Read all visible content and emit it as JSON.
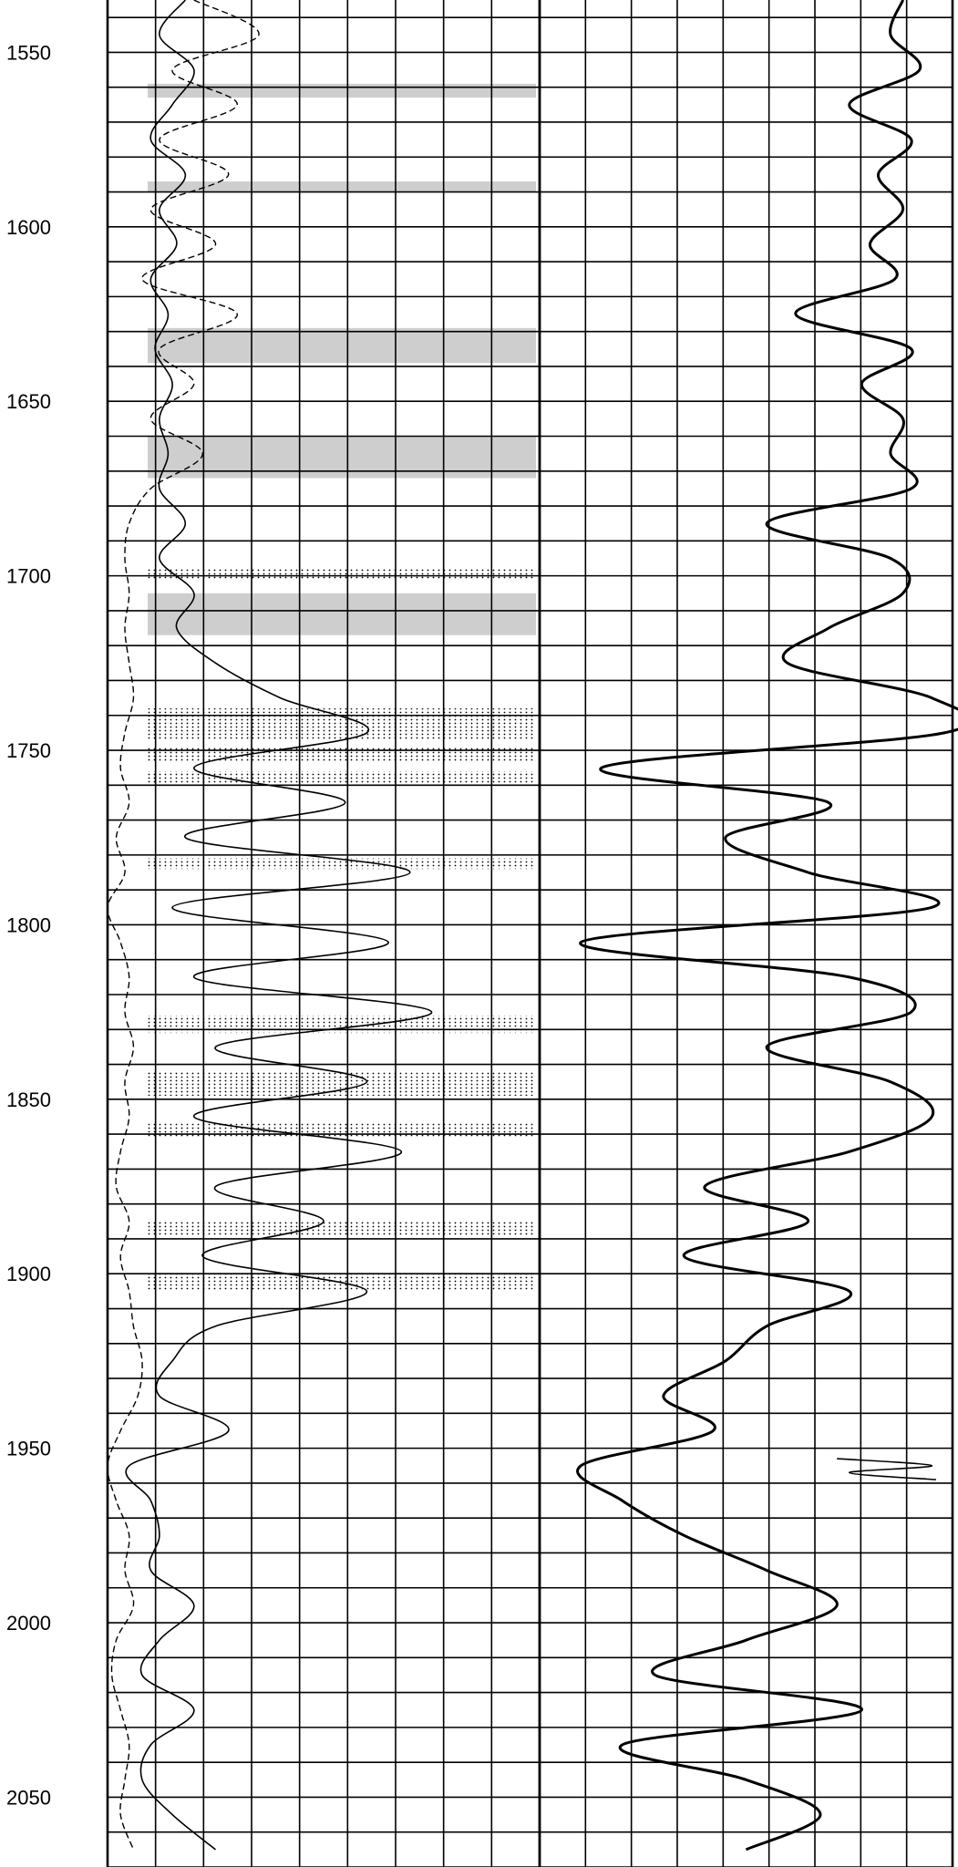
{
  "chart_data": {
    "type": "line",
    "title": "",
    "depth_axis": {
      "min": 1535,
      "max": 2070,
      "tick_labels": [
        "1550",
        "1600",
        "1650",
        "1700",
        "1750",
        "1800",
        "1850",
        "1900",
        "1950",
        "2000",
        "2050"
      ],
      "grid_interval": 10,
      "grid": true
    },
    "tracks": [
      {
        "name": "",
        "vertical_divisions": 9,
        "kind": "lithology_with_curves"
      },
      {
        "name": "",
        "vertical_divisions": 9,
        "kind": "curve"
      }
    ],
    "series": [
      {
        "track": 0,
        "style": "dashed",
        "scale": [
          0,
          1
        ],
        "depth": [
          1535,
          1545,
          1555,
          1565,
          1575,
          1585,
          1595,
          1605,
          1615,
          1625,
          1635,
          1645,
          1655,
          1665,
          1675,
          1685,
          1695,
          1705,
          1715,
          1725,
          1735,
          1745,
          1755,
          1765,
          1775,
          1785,
          1795,
          1805,
          1815,
          1825,
          1835,
          1845,
          1855,
          1865,
          1875,
          1885,
          1895,
          1905,
          1915,
          1925,
          1935,
          1945,
          1955,
          1965,
          1975,
          1985,
          1995,
          2005,
          2015,
          2025,
          2035,
          2045,
          2055,
          2065
        ],
        "value": [
          0.2,
          0.35,
          0.15,
          0.3,
          0.12,
          0.28,
          0.1,
          0.25,
          0.08,
          0.3,
          0.12,
          0.2,
          0.1,
          0.22,
          0.1,
          0.05,
          0.04,
          0.05,
          0.04,
          0.05,
          0.06,
          0.04,
          0.03,
          0.05,
          0.02,
          0.04,
          0.0,
          0.03,
          0.05,
          0.04,
          0.06,
          0.04,
          0.05,
          0.03,
          0.02,
          0.05,
          0.03,
          0.05,
          0.06,
          0.08,
          0.07,
          0.03,
          0.0,
          0.02,
          0.05,
          0.04,
          0.06,
          0.02,
          0.01,
          0.03,
          0.05,
          0.04,
          0.03,
          0.06
        ]
      },
      {
        "track": 0,
        "style": "solid",
        "scale": [
          0,
          1
        ],
        "depth": [
          1535,
          1545,
          1555,
          1565,
          1575,
          1585,
          1595,
          1605,
          1615,
          1625,
          1635,
          1645,
          1655,
          1665,
          1675,
          1685,
          1695,
          1705,
          1715,
          1725,
          1735,
          1745,
          1755,
          1765,
          1775,
          1785,
          1795,
          1805,
          1815,
          1825,
          1835,
          1845,
          1855,
          1865,
          1875,
          1885,
          1895,
          1905,
          1915,
          1925,
          1935,
          1945,
          1955,
          1965,
          1975,
          1985,
          1995,
          2005,
          2015,
          2025,
          2035,
          2045,
          2055,
          2065
        ],
        "value": [
          0.18,
          0.12,
          0.2,
          0.15,
          0.1,
          0.18,
          0.12,
          0.16,
          0.1,
          0.14,
          0.11,
          0.15,
          0.12,
          0.14,
          0.12,
          0.18,
          0.12,
          0.2,
          0.16,
          0.25,
          0.4,
          0.6,
          0.2,
          0.55,
          0.18,
          0.7,
          0.15,
          0.65,
          0.2,
          0.75,
          0.25,
          0.6,
          0.2,
          0.68,
          0.25,
          0.5,
          0.22,
          0.6,
          0.25,
          0.15,
          0.12,
          0.28,
          0.05,
          0.1,
          0.12,
          0.1,
          0.2,
          0.12,
          0.08,
          0.2,
          0.1,
          0.08,
          0.15,
          0.25
        ]
      },
      {
        "track": 1,
        "style": "thick",
        "scale": [
          0,
          1
        ],
        "depth": [
          1535,
          1545,
          1555,
          1565,
          1575,
          1585,
          1595,
          1605,
          1615,
          1625,
          1635,
          1645,
          1655,
          1665,
          1675,
          1685,
          1695,
          1705,
          1715,
          1725,
          1735,
          1745,
          1755,
          1765,
          1775,
          1785,
          1795,
          1805,
          1815,
          1825,
          1835,
          1845,
          1855,
          1865,
          1875,
          1885,
          1895,
          1905,
          1915,
          1925,
          1935,
          1945,
          1955,
          1965,
          1975,
          1985,
          1995,
          2005,
          2015,
          2025,
          2035,
          2045,
          2055,
          2065
        ],
        "value": [
          0.88,
          0.85,
          0.92,
          0.75,
          0.9,
          0.82,
          0.88,
          0.8,
          0.86,
          0.62,
          0.9,
          0.78,
          0.88,
          0.85,
          0.9,
          0.55,
          0.85,
          0.88,
          0.7,
          0.6,
          0.95,
          0.98,
          0.15,
          0.7,
          0.45,
          0.65,
          0.95,
          0.1,
          0.75,
          0.9,
          0.55,
          0.85,
          0.95,
          0.75,
          0.4,
          0.65,
          0.35,
          0.75,
          0.55,
          0.45,
          0.3,
          0.42,
          0.1,
          0.2,
          0.35,
          0.55,
          0.72,
          0.5,
          0.28,
          0.78,
          0.2,
          0.5,
          0.68,
          0.5
        ]
      },
      {
        "track": 1,
        "style": "solid",
        "scale": [
          0,
          1
        ],
        "depth": [
          1953,
          1955,
          1957,
          1959
        ],
        "value": [
          0.72,
          0.95,
          0.75,
          0.96
        ]
      }
    ],
    "lithology": [
      {
        "top": 1559,
        "base": 1563,
        "type": "shale"
      },
      {
        "top": 1587,
        "base": 1590,
        "type": "shale"
      },
      {
        "top": 1629,
        "base": 1639,
        "type": "shale"
      },
      {
        "top": 1660,
        "base": 1672,
        "type": "shale"
      },
      {
        "top": 1698,
        "base": 1701,
        "type": "sand"
      },
      {
        "top": 1705,
        "base": 1717,
        "type": "shale"
      },
      {
        "top": 1738,
        "base": 1747,
        "type": "sand"
      },
      {
        "top": 1749,
        "base": 1753,
        "type": "sand"
      },
      {
        "top": 1756,
        "base": 1760,
        "type": "sand"
      },
      {
        "top": 1781,
        "base": 1784,
        "type": "sand"
      },
      {
        "top": 1826,
        "base": 1831,
        "type": "sand"
      },
      {
        "top": 1842,
        "base": 1849,
        "type": "sand"
      },
      {
        "top": 1857,
        "base": 1861,
        "type": "sand"
      },
      {
        "top": 1885,
        "base": 1889,
        "type": "sand"
      },
      {
        "top": 1900,
        "base": 1905,
        "type": "sand"
      }
    ]
  }
}
